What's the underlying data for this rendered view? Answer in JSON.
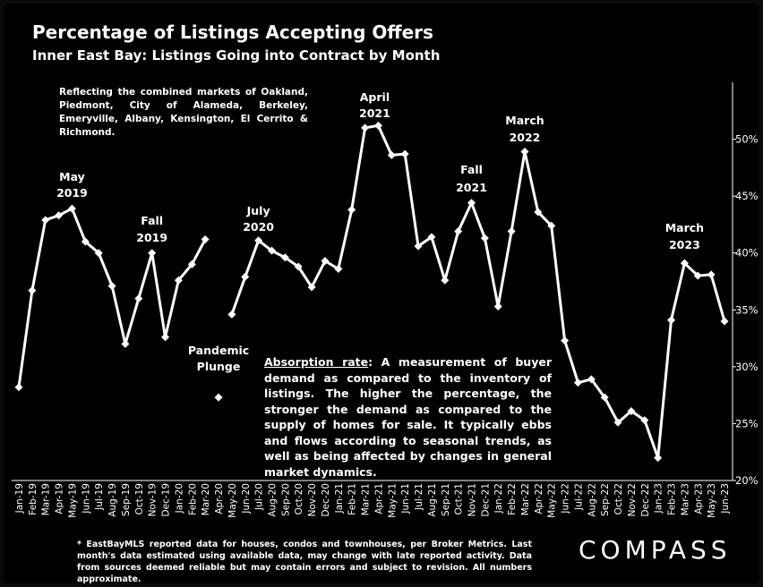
{
  "header": {
    "title": "Percentage of Listings Accepting Offers",
    "subtitle": "Inner East Bay: Listings Going into Contract by Month"
  },
  "note_top": "Reflecting the combined markets of Oakland, Piedmont, City of Alameda, Berkeley, Emeryville, Albany, Kensington, El Cerrito & Richmond.",
  "absorption": {
    "term": "Absorption rate",
    "text": ":  A measurement of buyer demand as compared to the inventory of listings. The higher the percentage, the stronger the demand as compared to the supply of homes for sale. It typically ebbs and flows according to seasonal trends, as well as being affected by changes in general market dynamics."
  },
  "footnote": "* EastBayMLS reported data for houses, condos and townhouses, per Broker Metrics. Last month's data estimated using available data, may change with late reported activity. Data from sources deemed reliable but may contain errors and subject to revision. All numbers approximate.",
  "logo": "COMPASS",
  "colors": {
    "background": "#000000",
    "line": "#ffffff",
    "text": "#ffffff"
  },
  "chart_data": {
    "type": "line",
    "title": "Percentage of Listings Accepting Offers",
    "subtitle": "Inner East Bay: Listings Going into Contract by Month",
    "y_axis_position": "right",
    "ylim": [
      20,
      55
    ],
    "yticks": [
      "20%",
      "25%",
      "30%",
      "35%",
      "40%",
      "45%",
      "50%"
    ],
    "grid": false,
    "categories": [
      "Jan-19",
      "Feb-19",
      "Mar-19",
      "Apr-19",
      "May-19",
      "Jun-19",
      "Jul-19",
      "Aug-19",
      "Sep-19",
      "Oct-19",
      "Nov-19",
      "Dec-19",
      "Jan-20",
      "Feb-20",
      "Mar-20",
      "Apr-20",
      "May-20",
      "Jun-20",
      "Jul-20",
      "Aug-20",
      "Sep-20",
      "Oct-20",
      "Nov-20",
      "Dec-20",
      "Jan-21",
      "Feb-21",
      "Mar-21",
      "Apr-21",
      "May-21",
      "Jun-21",
      "Jul-21",
      "Aug-21",
      "Sep-21",
      "Oct-21",
      "Nov-21",
      "Dec-21",
      "Jan-22",
      "Feb-22",
      "Mar-22",
      "Apr-22",
      "May-22",
      "Jun-22",
      "Jul-22",
      "Aug-22",
      "Sep-22",
      "Oct-22",
      "Nov-22",
      "Dec-22",
      "Jan-23",
      "Feb-23",
      "Mar-23",
      "Apr-23",
      "May-23",
      "Jun-23"
    ],
    "series": [
      {
        "values": [
          28.2,
          36.7,
          42.9,
          43.3,
          43.9,
          41.0,
          40.0,
          37.1,
          32.0,
          36.0,
          40.0,
          32.6,
          37.6,
          39.0,
          41.2,
          27.3,
          34.6,
          37.9,
          41.1,
          40.2,
          39.6,
          38.8,
          37.0,
          39.3,
          38.6,
          43.8,
          51.0,
          51.2,
          48.6,
          48.7,
          40.6,
          41.4,
          37.6,
          41.9,
          44.4,
          41.3,
          35.3,
          41.9,
          48.9,
          43.6,
          42.4,
          32.3,
          28.6,
          28.9,
          27.3,
          25.1,
          26.1,
          25.3,
          22.0,
          34.1,
          39.1,
          38.0,
          38.1,
          34.0
        ]
      }
    ],
    "annotations": [
      {
        "label": "May\n2019",
        "index": 4
      },
      {
        "label": "Fall\n2019",
        "index": 10
      },
      {
        "label": "Pandemic\nPlunge",
        "index": 15
      },
      {
        "label": "July\n2020",
        "index": 18
      },
      {
        "label": "April\n2021",
        "index": 27
      },
      {
        "label": "Fall\n2021",
        "index": 34
      },
      {
        "label": "March\n2022",
        "index": 38
      },
      {
        "label": "March\n2023",
        "index": 50
      }
    ]
  }
}
